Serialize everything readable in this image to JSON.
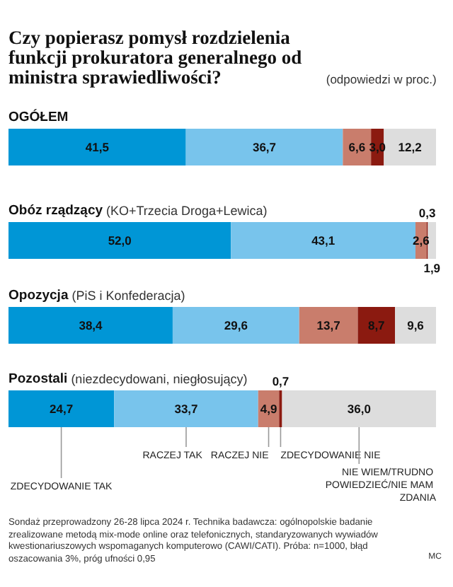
{
  "chart_data": [
    {
      "type": "bar",
      "orientation": "horizontal",
      "stacked": true,
      "title": "Czy popierasz pomysł rozdzielenia funkcji prokuratora generalnego od ministra sprawiedliwości?",
      "subtitle": "(odpowiedzi w proc.)",
      "categories": [
        "OGÓŁEM"
      ],
      "tick_labels": "y",
      "grid": false,
      "series": [
        {
          "color": "#0096d6",
          "values": [
            41.5
          ],
          "value_labels": [
            "41,5"
          ]
        },
        {
          "color": "#78c4ec",
          "values": [
            36.7
          ],
          "value_labels": [
            "36,7"
          ]
        },
        {
          "color": "#c97d6c",
          "values": [
            6.6
          ],
          "value_labels": [
            "6,6"
          ]
        },
        {
          "color": "#8b1a10",
          "values": [
            3.0
          ],
          "value_labels": [
            "3,0"
          ]
        },
        {
          "color": "#dddddd",
          "values": [
            12.2
          ],
          "value_labels": [
            "12,2"
          ]
        }
      ]
    },
    {
      "type": "bar",
      "orientation": "horizontal",
      "stacked": true,
      "categories": [
        "Obóz rządzący (KO+Trzecia Droga+Lewica)"
      ],
      "tick_labels": "y",
      "grid": false,
      "series": [
        {
          "color": "#0096d6",
          "values": [
            52.0
          ],
          "value_labels": [
            "52,0"
          ]
        },
        {
          "color": "#78c4ec",
          "values": [
            43.1
          ],
          "value_labels": [
            "43,1"
          ]
        },
        {
          "color": "#c97d6c",
          "values": [
            2.6
          ],
          "value_labels": [
            "2,6"
          ]
        },
        {
          "color": "#8b1a10",
          "values": [
            0.3
          ],
          "value_labels": [
            "0,3"
          ]
        },
        {
          "color": "#dddddd",
          "values": [
            1.9
          ],
          "value_labels": [
            "1,9"
          ]
        }
      ]
    },
    {
      "type": "bar",
      "orientation": "horizontal",
      "stacked": true,
      "categories": [
        "Opozycja (PiS i Konfederacja)"
      ],
      "tick_labels": "y",
      "grid": false,
      "series": [
        {
          "color": "#0096d6",
          "values": [
            38.4
          ],
          "value_labels": [
            "38,4"
          ]
        },
        {
          "color": "#78c4ec",
          "values": [
            29.6
          ],
          "value_labels": [
            "29,6"
          ]
        },
        {
          "color": "#c97d6c",
          "values": [
            13.7
          ],
          "value_labels": [
            "13,7"
          ]
        },
        {
          "color": "#8b1a10",
          "values": [
            8.7
          ],
          "value_labels": [
            "8,7"
          ]
        },
        {
          "color": "#dddddd",
          "values": [
            9.6
          ],
          "value_labels": [
            "9,6"
          ]
        }
      ]
    },
    {
      "type": "bar",
      "orientation": "horizontal",
      "stacked": true,
      "categories": [
        "Pozostali (niezdecydowani, niegłosujący)"
      ],
      "tick_labels": "y",
      "grid": false,
      "legend": "bottom",
      "annotations": [
        "Sondaż przeprowadzony 26-28 lipca 2024 r. Technika badawcza: ogólnopolskie badanie zrealizowane metodą mix-mode online oraz telefonicznych, standaryzowanych wywiadów kwestionariuszowych wspomaganych komputerowo (CAWI/CATI). Próba: n=1000, błąd oszacowania 3%, próg ufności 0,95",
        "MC"
      ],
      "series": [
        {
          "name": "ZDECYDOWANIE TAK",
          "color": "#0096d6",
          "values": [
            24.7
          ],
          "value_labels": [
            "24,7"
          ]
        },
        {
          "name": "RACZEJ TAK",
          "color": "#78c4ec",
          "values": [
            33.7
          ],
          "value_labels": [
            "33,7"
          ]
        },
        {
          "name": "RACZEJ NIE",
          "color": "#c97d6c",
          "values": [
            4.9
          ],
          "value_labels": [
            "4,9"
          ]
        },
        {
          "name": "ZDECYDOWANIE NIE",
          "color": "#8b1a10",
          "values": [
            0.7
          ],
          "value_labels": [
            "0,7"
          ]
        },
        {
          "name": "NIE WIEM/TRUDNO POWIEDZIEĆ/NIE MAM ZDANIA",
          "color": "#dddddd",
          "values": [
            36.0
          ],
          "value_labels": [
            "36,0"
          ]
        }
      ]
    }
  ]
}
